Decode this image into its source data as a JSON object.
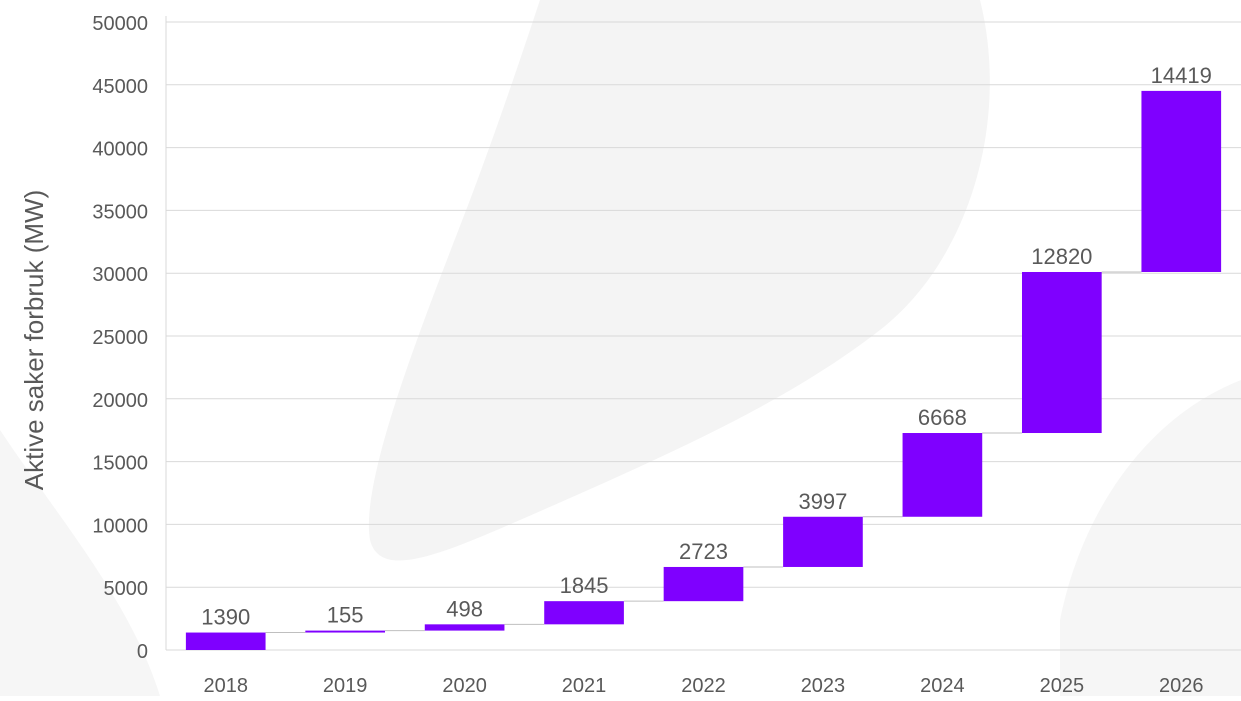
{
  "chart_data": {
    "type": "bar",
    "subtype": "waterfall",
    "categories": [
      "2018",
      "2019",
      "2020",
      "2021",
      "2022",
      "2023",
      "2024",
      "2025",
      "2026"
    ],
    "values": [
      1390,
      155,
      498,
      1845,
      2723,
      3997,
      6668,
      12820,
      14419
    ],
    "data_labels": [
      "1390",
      "155",
      "498",
      "1845",
      "2723",
      "3997",
      "6668",
      "12820",
      "14419"
    ],
    "title": "",
    "xlabel": "",
    "ylabel": "Aktive saker forbruk (MW)",
    "ylim": [
      0,
      50000
    ],
    "yticks": [
      0,
      5000,
      10000,
      15000,
      20000,
      25000,
      30000,
      35000,
      40000,
      45000,
      50000
    ],
    "ytick_labels": [
      "0",
      "5000",
      "10000",
      "15000",
      "20000",
      "25000",
      "30000",
      "35000",
      "40000",
      "45000",
      "50000"
    ],
    "grid": true,
    "legend": "none",
    "colors": {
      "bar": "#7f00ff",
      "grid": "#d9d9d9",
      "text": "#595959",
      "background_shape": "#f2f2f2"
    }
  }
}
